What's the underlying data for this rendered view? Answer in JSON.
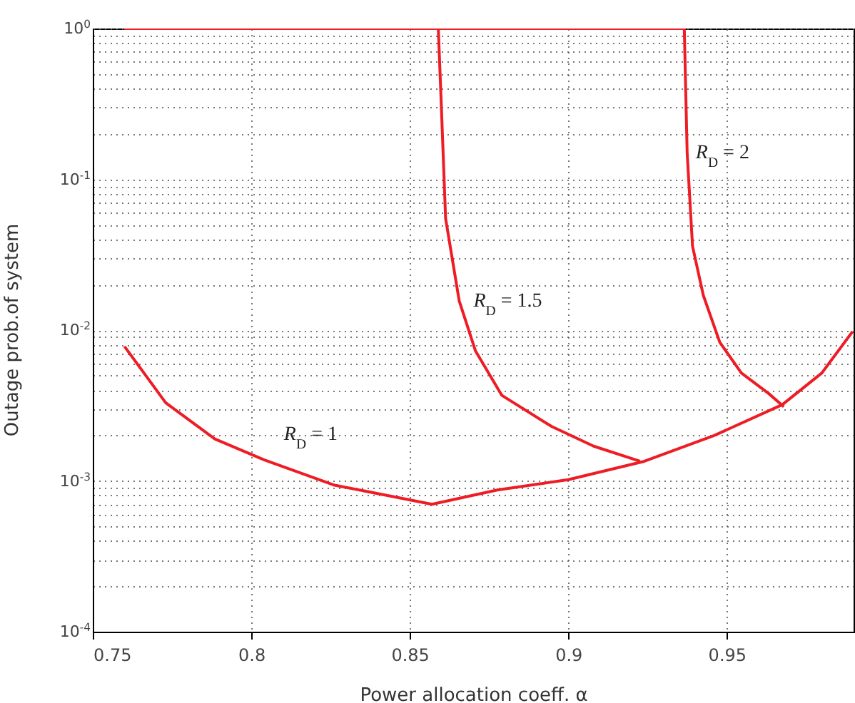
{
  "chart_data": {
    "type": "line",
    "xlabel": "Power allocation coeff. α",
    "ylabel": "Outage prob.of system",
    "log": "y",
    "grid": true,
    "xlim": [
      0.75,
      0.99
    ],
    "xticks": [
      0.75,
      0.8,
      0.85,
      0.9,
      0.95
    ],
    "ylim": [
      0.0001,
      1
    ],
    "yticks": [
      {
        "value": 0.0001,
        "label": "10$^{-4}$"
      },
      {
        "value": 0.0002,
        "label": null
      },
      {
        "value": 0.0003,
        "label": null
      },
      {
        "value": 0.0004,
        "label": null
      },
      {
        "value": 0.0005,
        "label": null
      },
      {
        "value": 0.0006,
        "label": null
      },
      {
        "value": 0.0007,
        "label": null
      },
      {
        "value": 0.0008,
        "label": null
      },
      {
        "value": 0.0009,
        "label": null
      },
      {
        "value": 0.001,
        "label": "10$^{-3}$"
      },
      {
        "value": 0.002,
        "label": null
      },
      {
        "value": 0.003,
        "label": null
      },
      {
        "value": 0.004,
        "label": null
      },
      {
        "value": 0.005,
        "label": null
      },
      {
        "value": 0.006,
        "label": null
      },
      {
        "value": 0.007,
        "label": null
      },
      {
        "value": 0.008,
        "label": null
      },
      {
        "value": 0.009,
        "label": null
      },
      {
        "value": 0.01,
        "label": "10$^{-2}$"
      },
      {
        "value": 0.02,
        "label": null
      },
      {
        "value": 0.03,
        "label": null
      },
      {
        "value": 0.04,
        "label": null
      },
      {
        "value": 0.05,
        "label": null
      },
      {
        "value": 0.06,
        "label": null
      },
      {
        "value": 0.07,
        "label": null
      },
      {
        "value": 0.08,
        "label": null
      },
      {
        "value": 0.09,
        "label": null
      },
      {
        "value": 0.1,
        "label": "10$^{-1}$"
      },
      {
        "value": 0.2,
        "label": null
      },
      {
        "value": 0.3,
        "label": null
      },
      {
        "value": 0.4,
        "label": null
      },
      {
        "value": 0.5,
        "label": null
      },
      {
        "value": 0.6,
        "label": null
      },
      {
        "value": 0.7,
        "label": null
      },
      {
        "value": 0.8,
        "label": null
      },
      {
        "value": 0.9,
        "label": null
      },
      {
        "value": 1,
        "label": "10$^{0}$"
      }
    ],
    "series": [
      {
        "name": "R$_{D}$ = 1",
        "color": "#ee1c25",
        "x": [
          0.76,
          0.773,
          0.7885,
          0.804,
          0.826,
          0.843,
          0.857,
          0.8776,
          0.9,
          0.924,
          0.946,
          0.9675,
          0.98,
          0.9897
        ],
        "values": [
          0.0078,
          0.0033,
          0.0019,
          0.00138,
          0.00094,
          0.0008,
          0.0007,
          0.00087,
          0.00102,
          0.00135,
          0.002,
          0.0032,
          0.0052,
          0.0098
        ]
      },
      {
        "name": "R$_{D}$ = 1.5",
        "color": "#ee1c25",
        "x": [
          0.76,
          0.859,
          0.86,
          0.8613,
          0.8656,
          0.8707,
          0.879,
          0.8947,
          0.908,
          0.9226
        ],
        "values": [
          1,
          1,
          0.29,
          0.055,
          0.0156,
          0.0073,
          0.0037,
          0.0023,
          0.0017,
          0.00135
        ]
      },
      {
        "name": "R$_{D}$ = 2",
        "color": "#ee1c25",
        "x": [
          0.76,
          0.9366,
          0.9375,
          0.9392,
          0.9426,
          0.9478,
          0.9546,
          0.9632,
          0.968
        ],
        "values": [
          1,
          1,
          0.15,
          0.036,
          0.017,
          0.0083,
          0.0052,
          0.0038,
          0.0031
        ]
      }
    ]
  }
}
